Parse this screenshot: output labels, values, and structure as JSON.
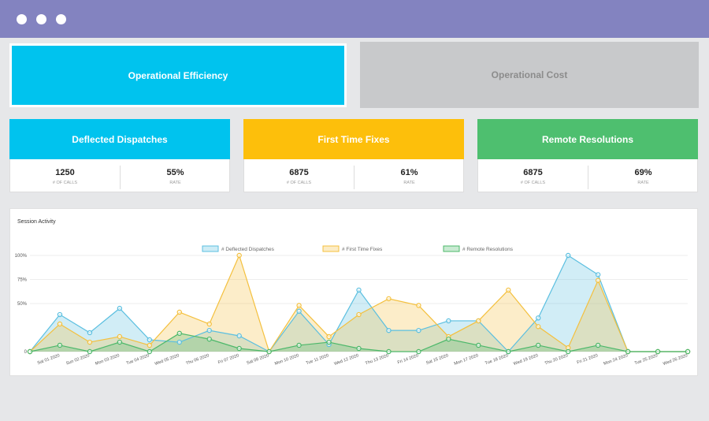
{
  "tabs": [
    {
      "label": "Operational Efficiency",
      "color": "#00c3ee",
      "text_color": "#ffffff"
    },
    {
      "label": "Operational Cost",
      "color": "#c8c9cb",
      "text_color": "#8c8c8c"
    }
  ],
  "cards": [
    {
      "title": "Deflected Dispatches",
      "color": "#00c3ee",
      "calls": 1250,
      "calls_label": "# OF CALLS",
      "rate": "55%",
      "rate_label": "RATE"
    },
    {
      "title": "First Time Fixes",
      "color": "#fdbf0b",
      "calls": 6875,
      "calls_label": "# OF CALLS",
      "rate": "61%",
      "rate_label": "RATE"
    },
    {
      "title": "Remote Resolutions",
      "color": "#4ebf6f",
      "calls": 6875,
      "calls_label": "# OF CALLS",
      "rate": "69%",
      "rate_label": "RATE"
    }
  ],
  "chart_data": {
    "type": "area",
    "title": "Session Activity",
    "categories": [
      null,
      "Sat 01 2020",
      "Sun 02 2020",
      "Mon 03 2020",
      "Tue 04 2020",
      "Wed 05 2020",
      "Thu 06 2020",
      "Fri 07 2020",
      "Sat 08 2020",
      "Mon 10 2020",
      "Tue 11 2020",
      "Wed 12 2020",
      "Thu 13 2020",
      "Fri 14 2020",
      "Sat 15 2020",
      "Mon 17 2020",
      "Tue 18 2020",
      "Wed 19 2020",
      "Thu 20 2020",
      "Fri 21 2020",
      "Mon 24 2020",
      "Tue 25 2020",
      "Wed 26 2020"
    ],
    "series": [
      {
        "name": "# Deflected Dispatches",
        "color": "#5bbfe0",
        "values": [
          0,
          38.5,
          19.7,
          45,
          12.3,
          9.8,
          22,
          16.4,
          0,
          42,
          7.4,
          64,
          22,
          22,
          32,
          32,
          0,
          35,
          100,
          80,
          0,
          0,
          0
        ]
      },
      {
        "name": "# First Time Fixes",
        "color": "#f4c03e",
        "values": [
          0,
          28.7,
          9.8,
          15.6,
          6.6,
          41,
          28.7,
          100,
          0,
          48,
          15.6,
          38.5,
          55,
          48,
          15.6,
          32,
          64,
          26,
          4,
          74,
          0,
          0,
          0
        ]
      },
      {
        "name": "# Remote Resolutions",
        "color": "#4cb86a",
        "values": [
          0,
          6.6,
          0,
          9.8,
          0,
          19,
          13,
          3.3,
          0,
          6.6,
          9.8,
          3.3,
          0,
          0,
          13,
          6.6,
          0,
          6.6,
          0,
          6.6,
          0,
          0,
          0
        ]
      }
    ],
    "ylim": [
      0,
      100
    ],
    "yticks": [
      0,
      {
        "value": 50,
        "label": "50%"
      },
      {
        "value": 75,
        "label": "75%"
      },
      {
        "value": 100,
        "label": "100%"
      }
    ],
    "grid": true
  }
}
